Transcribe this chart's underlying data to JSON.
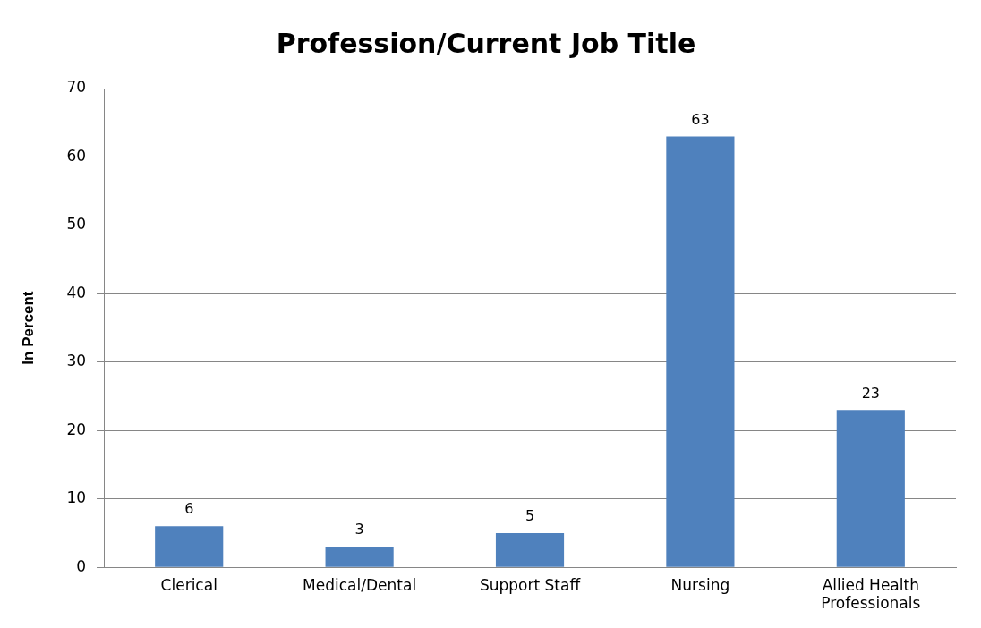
{
  "chart_data": {
    "type": "bar",
    "title": "Profession/Current Job Title",
    "ylabel": "In Percent",
    "categories": [
      "Clerical",
      "Medical/Dental",
      "Support Staff",
      "Nursing",
      "Allied Health Professionals"
    ],
    "values": [
      6,
      3,
      5,
      63,
      23
    ],
    "color": "#4f81bd",
    "ylim": [
      0,
      70
    ],
    "yticks": [
      0,
      10,
      20,
      30,
      40,
      50,
      60,
      70
    ],
    "grid": "y",
    "data_labels": true,
    "legend": false
  }
}
